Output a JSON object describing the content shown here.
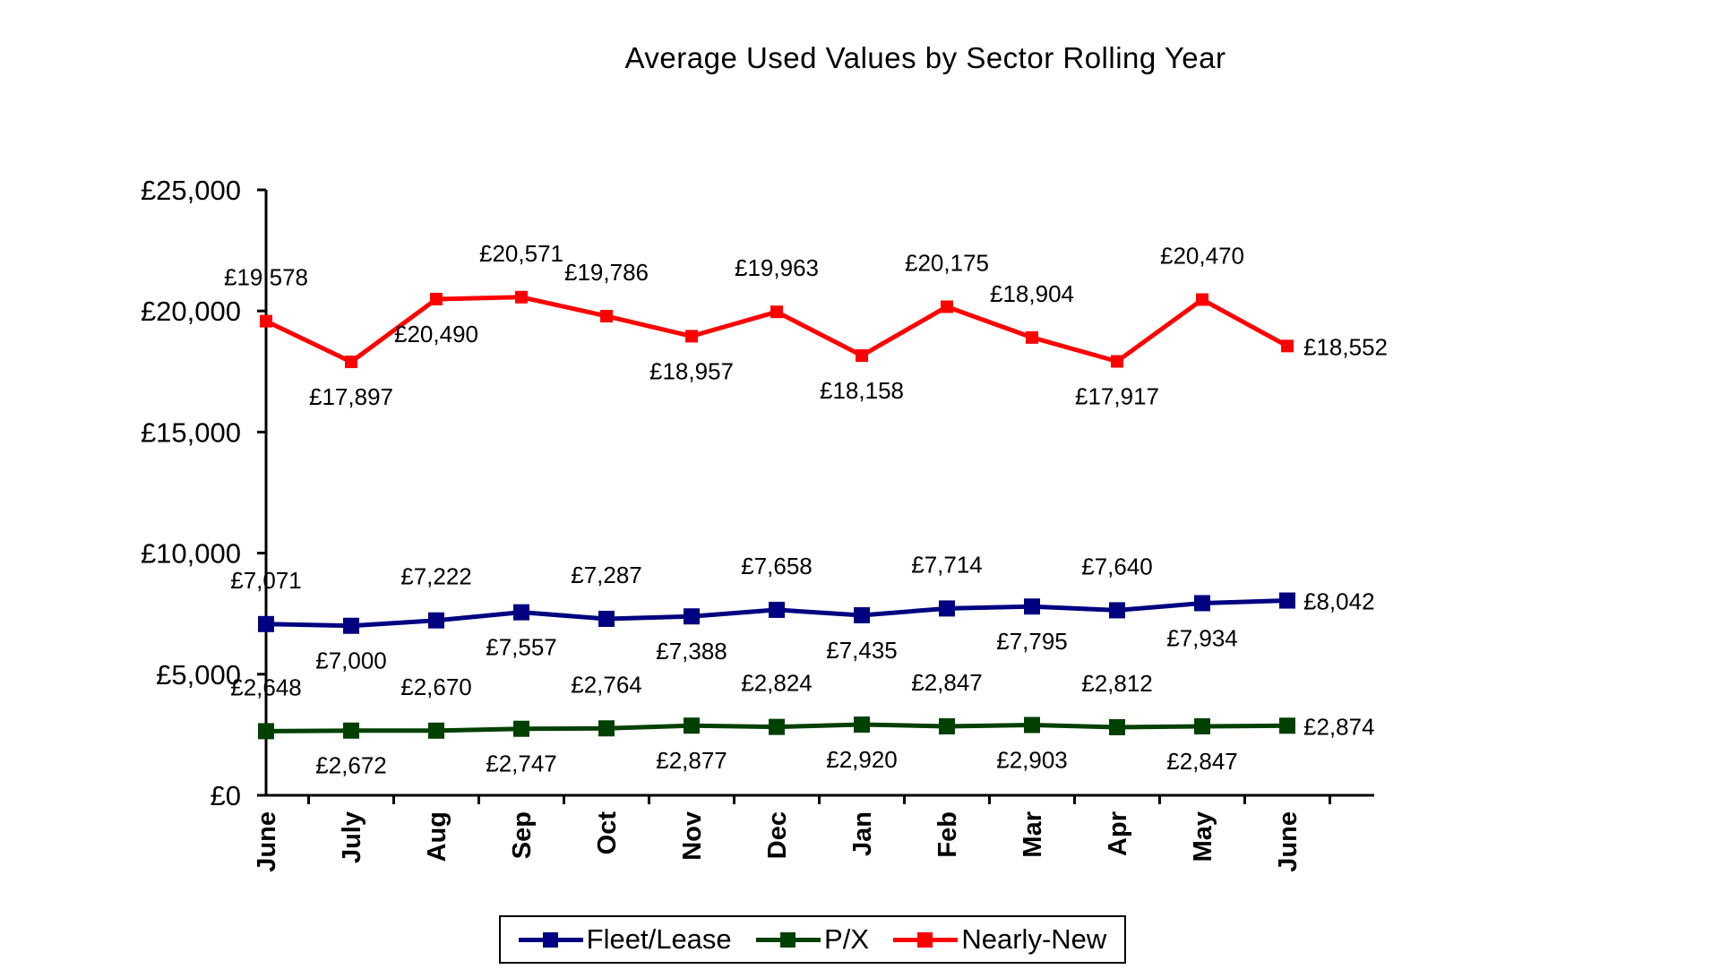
{
  "chart_data": {
    "type": "line",
    "title": "Average Used Values by Sector Rolling Year",
    "xlabel": "",
    "ylabel": "",
    "categories": [
      "June",
      "July",
      "Aug",
      "Sep",
      "Oct",
      "Nov",
      "Dec",
      "Jan",
      "Feb",
      "Mar",
      "Apr",
      "May",
      "June"
    ],
    "yticks": [
      "£0",
      "£5,000",
      "£10,000",
      "£15,000",
      "£20,000",
      "£25,000"
    ],
    "ylim": [
      0,
      25000
    ],
    "grid": false,
    "legend_position": "bottom",
    "series": [
      {
        "name": "Fleet/Lease",
        "color": "#000080",
        "values": [
          7071,
          7000,
          7222,
          7557,
          7287,
          7388,
          7658,
          7435,
          7714,
          7795,
          7640,
          7934,
          8042
        ],
        "labels": [
          "£7,071",
          "£7,000",
          "£7,222",
          "£7,557",
          "£7,287",
          "£7,388",
          "£7,658",
          "£7,435",
          "£7,714",
          "£7,795",
          "£7,640",
          "£7,934",
          "£8,042"
        ]
      },
      {
        "name": "P/X",
        "color": "#004000",
        "values": [
          2648,
          2672,
          2670,
          2747,
          2764,
          2877,
          2824,
          2920,
          2847,
          2903,
          2812,
          2847,
          2874
        ],
        "labels": [
          "£2,648",
          "£2,672",
          "£2,670",
          "£2,747",
          "£2,764",
          "£2,877",
          "£2,824",
          "£2,920",
          "£2,847",
          "£2,903",
          "£2,812",
          "£2,847",
          "£2,874"
        ]
      },
      {
        "name": "Nearly-New",
        "color": "#ff0000",
        "values": [
          19578,
          17897,
          20490,
          20571,
          19786,
          18957,
          19963,
          18158,
          20175,
          18904,
          17917,
          20470,
          18552
        ],
        "labels": [
          "£19,578",
          "£17,897",
          "£20,490",
          "£20,571",
          "£19,786",
          "£18,957",
          "£19,963",
          "£18,158",
          "£20,175",
          "£18,904",
          "£17,917",
          "£20,470",
          "£18,552"
        ]
      }
    ]
  }
}
